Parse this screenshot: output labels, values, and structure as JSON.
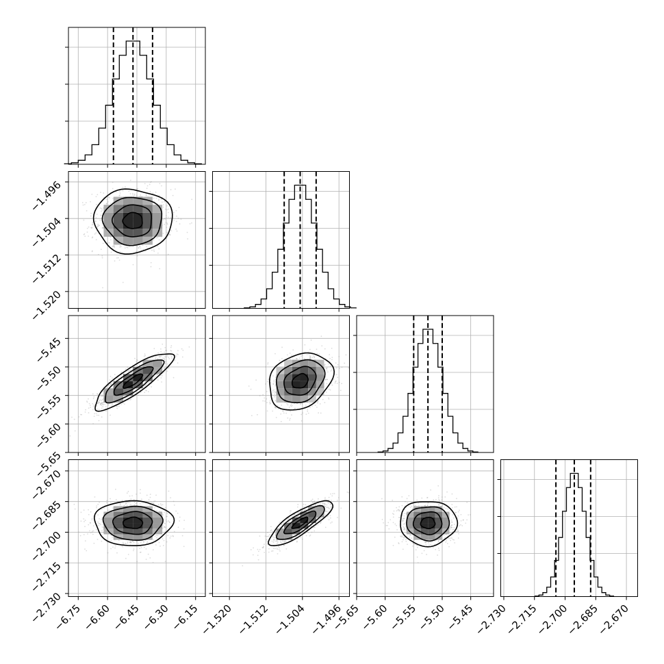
{
  "chart_data": {
    "type": "corner",
    "params": [
      {
        "mean": -6.47,
        "std": 0.1,
        "q": [
          -6.57,
          -6.47,
          -6.37
        ],
        "range": [
          -6.8,
          -6.1
        ],
        "ticks": [
          -6.75,
          -6.6,
          -6.45,
          -6.3,
          -6.15
        ],
        "tick_labels": [
          "−6.75",
          "−6.60",
          "−6.45",
          "−6.30",
          "−6.15"
        ]
      },
      {
        "mean": -1.5045,
        "std": 0.0035,
        "q": [
          -1.508,
          -1.5045,
          -1.501
        ],
        "range": [
          -1.5237,
          -1.4937
        ],
        "ticks": [
          -1.52,
          -1.512,
          -1.504,
          -1.496
        ],
        "tick_labels": [
          "−1.520",
          "−1.512",
          "−1.504",
          "−1.496"
        ]
      },
      {
        "mean": -5.525,
        "std": 0.025,
        "q": [
          -5.55,
          -5.525,
          -5.5
        ],
        "range": [
          -5.65,
          -5.41
        ],
        "ticks": [
          -5.65,
          -5.6,
          -5.55,
          -5.5,
          -5.45
        ],
        "tick_labels": [
          "−5.65",
          "−5.60",
          "−5.55",
          "−5.50",
          "−5.45"
        ]
      },
      {
        "mean": -2.6955,
        "std": 0.0055,
        "q": [
          -2.7045,
          -2.6955,
          -2.6875
        ],
        "range": [
          -2.7315,
          -2.6645
        ],
        "ticks": [
          -2.73,
          -2.715,
          -2.7,
          -2.685,
          -2.67
        ],
        "tick_labels": [
          "−2.730",
          "−2.715",
          "−2.700",
          "−2.685",
          "−2.670"
        ]
      }
    ],
    "correlations": [
      {
        "i": 1,
        "j": 0,
        "r": 0.0
      },
      {
        "i": 2,
        "j": 0,
        "r": 0.85
      },
      {
        "i": 2,
        "j": 1,
        "r": 0.25
      },
      {
        "i": 3,
        "j": 0,
        "r": 0.0
      },
      {
        "i": 3,
        "j": 1,
        "r": 0.82
      },
      {
        "i": 3,
        "j": 2,
        "r": 0.0
      }
    ],
    "histogram_bins": 20,
    "contour_levels_sigma": [
      0.5,
      1.0,
      1.5,
      2.0
    ],
    "quantile_lines": "dashed",
    "grid": true,
    "colors": {
      "lines": "#000000",
      "points": "#9a9a9a",
      "grid": "#b0b0b0",
      "background": "#ffffff"
    }
  }
}
